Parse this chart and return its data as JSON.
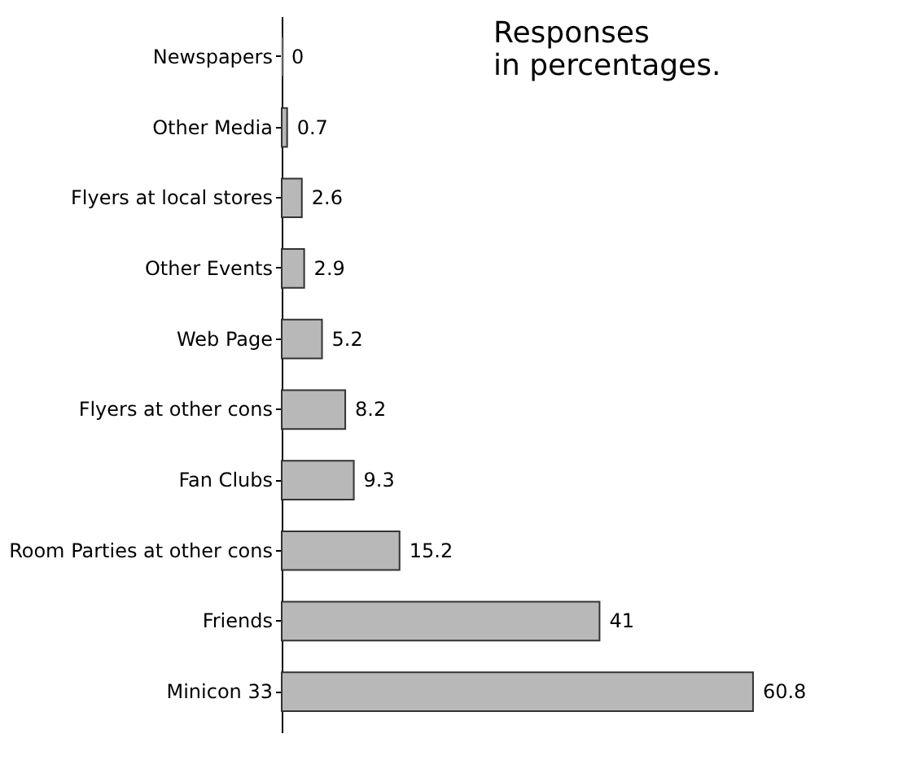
{
  "chart_data": {
    "type": "bar",
    "orientation": "horizontal",
    "categories": [
      "Newspapers",
      "Other Media",
      "Flyers at local stores",
      "Other Events",
      "Web Page",
      "Flyers at other cons",
      "Fan Clubs",
      "Room Parties at other cons",
      "Friends",
      "Minicon 33"
    ],
    "values": [
      0,
      0.7,
      2.6,
      2.9,
      5.2,
      8.2,
      9.3,
      15.2,
      41,
      60.8
    ],
    "color": "#b8b8b8",
    "data_labels": true,
    "grid": false,
    "tick_labels": "y",
    "annotations": [
      "Responses in percentages."
    ]
  }
}
